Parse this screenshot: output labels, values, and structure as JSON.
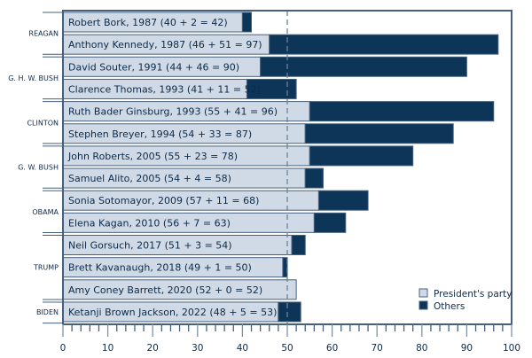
{
  "chart_data": {
    "type": "bar",
    "orientation": "horizontal",
    "stacked": true,
    "xlim": [
      0,
      100
    ],
    "xticks": [
      0,
      10,
      20,
      30,
      40,
      50,
      60,
      70,
      80,
      90,
      100
    ],
    "reference_line": 50,
    "grid": false,
    "legend_position": "bottom-right",
    "colors": {
      "presidents_party": "#d0dae6",
      "others": "#0d3558",
      "frame": "#45607e"
    },
    "series": [
      {
        "name": "President's party",
        "values": [
          40,
          46,
          44,
          41,
          55,
          54,
          55,
          54,
          57,
          56,
          51,
          49,
          52,
          48
        ]
      },
      {
        "name": "Others",
        "values": [
          2,
          51,
          46,
          11,
          41,
          33,
          23,
          4,
          11,
          7,
          3,
          1,
          0,
          5
        ]
      }
    ],
    "categories": [
      "Robert Bork, 1987 (40 + 2 = 42)",
      "Anthony Kennedy, 1987 (46 + 51 = 97)",
      "David Souter, 1991 (44 + 46 = 90)",
      "Clarence Thomas, 1993 (41 + 11 = 52)",
      "Ruth Bader Ginsburg, 1993 (55 + 41 = 96)",
      "Stephen Breyer, 1994 (54 + 33 = 87)",
      "John Roberts, 2005 (55 + 23 = 78)",
      "Samuel Alito, 2005 (54 + 4 = 58)",
      "Sonia Sotomayor, 2009 (57 + 11 = 68)",
      "Elena Kagan, 2010 (56 + 7 = 63)",
      "Neil Gorsuch, 2017 (51 + 3 = 54)",
      "Brett Kavanaugh, 2018 (49 + 1 = 50)",
      "Amy Coney Barrett, 2020 (52 + 0 = 52)",
      "Ketanji Brown Jackson, 2022 (48 + 5 = 53)"
    ],
    "groups": [
      {
        "label": "REAGAN",
        "count": 2
      },
      {
        "label": "G. H. W. BUSH",
        "count": 2
      },
      {
        "label": "CLINTON",
        "count": 2
      },
      {
        "label": "G. W. BUSH",
        "count": 2
      },
      {
        "label": "OBAMA",
        "count": 2
      },
      {
        "label": "TRUMP",
        "count": 3
      },
      {
        "label": "BIDEN",
        "count": 1
      }
    ]
  }
}
